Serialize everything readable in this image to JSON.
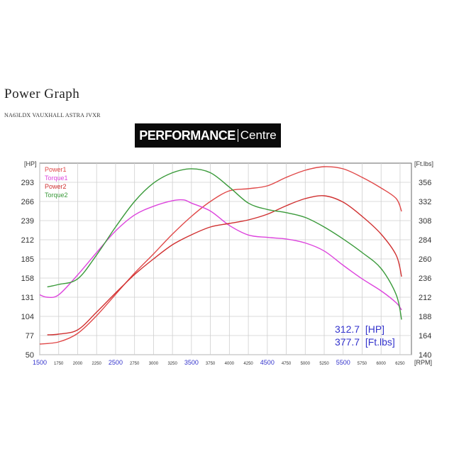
{
  "header": {
    "title": "Power Graph",
    "subtitle": "NA63LDX VAUXHALL ASTRA JVXR",
    "logo_bold": "PERFORMANCE",
    "logo_light": "Centre"
  },
  "readout": {
    "power": "312.7  [HP]",
    "torque": "377.7  [Ft.lbs]"
  },
  "chart_data": {
    "type": "line",
    "left_axis": {
      "unit": "[HP]",
      "ticks": [
        50,
        77,
        104,
        131,
        158,
        185,
        212,
        239,
        266,
        293
      ],
      "range": [
        50,
        320
      ]
    },
    "right_axis": {
      "unit": "[Ft.lbs]",
      "ticks": [
        140,
        164,
        188,
        212,
        236,
        260,
        284,
        308,
        332,
        356
      ],
      "range": [
        140,
        380
      ]
    },
    "x_axis": {
      "unit": "[RPM]",
      "ticks": [
        1500,
        1750,
        2000,
        2250,
        2500,
        2750,
        3000,
        3250,
        3500,
        3750,
        4000,
        4250,
        4500,
        4750,
        5000,
        5250,
        5500,
        5750,
        6000,
        6250
      ],
      "highlight_ticks": [
        1500,
        2500,
        3500,
        4500,
        5500
      ],
      "range": [
        1500,
        6400
      ]
    },
    "grid": true,
    "legend_position": "top-left",
    "series": [
      {
        "name": "Power1",
        "axis": "left",
        "color": "#e04848",
        "x": [
          1500,
          1750,
          2000,
          2250,
          2500,
          2750,
          3000,
          3250,
          3500,
          3750,
          4000,
          4250,
          4500,
          4750,
          5000,
          5250,
          5500,
          5750,
          6000,
          6200,
          6270
        ],
        "y": [
          65,
          68,
          80,
          105,
          135,
          165,
          192,
          220,
          245,
          266,
          281,
          284,
          288,
          300,
          310,
          315,
          312,
          300,
          285,
          270,
          252
        ]
      },
      {
        "name": "Torque1",
        "axis": "right",
        "color": "#dd44dd",
        "x": [
          1500,
          1600,
          1750,
          2000,
          2250,
          2500,
          2750,
          3000,
          3250,
          3400,
          3500,
          3750,
          4000,
          4250,
          4500,
          4750,
          5000,
          5250,
          5500,
          5750,
          6000,
          6200,
          6270
        ],
        "y": [
          215,
          212,
          215,
          240,
          268,
          295,
          315,
          326,
          333,
          334,
          330,
          320,
          302,
          290,
          287,
          285,
          280,
          270,
          252,
          235,
          220,
          205,
          196
        ]
      },
      {
        "name": "Power2",
        "axis": "left",
        "color": "#d03030",
        "x": [
          1600,
          1750,
          2000,
          2250,
          2500,
          2750,
          3000,
          3250,
          3500,
          3750,
          4000,
          4250,
          4500,
          4750,
          5000,
          5250,
          5500,
          5750,
          6000,
          6200,
          6270
        ],
        "y": [
          78,
          79,
          85,
          110,
          137,
          163,
          185,
          205,
          219,
          230,
          235,
          240,
          248,
          260,
          270,
          274,
          265,
          245,
          220,
          190,
          160
        ]
      },
      {
        "name": "Torque2",
        "axis": "right",
        "color": "#3a9a3a",
        "x": [
          1600,
          1750,
          2000,
          2250,
          2500,
          2750,
          3000,
          3250,
          3500,
          3750,
          4000,
          4250,
          4500,
          4750,
          5000,
          5250,
          5500,
          5750,
          6000,
          6200,
          6270
        ],
        "y": [
          225,
          228,
          235,
          265,
          300,
          332,
          355,
          368,
          373,
          368,
          350,
          330,
          322,
          318,
          312,
          300,
          285,
          268,
          248,
          215,
          184
        ]
      }
    ]
  }
}
